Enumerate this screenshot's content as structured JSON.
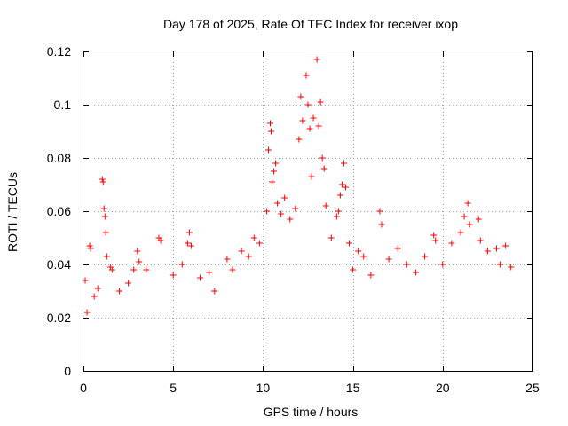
{
  "chart_data": {
    "type": "scatter",
    "title": "Day 178 of 2025, Rate Of TEC Index for receiver ixop",
    "xlabel": "GPS time / hours",
    "ylabel": "ROTI / TECUs",
    "xlim": [
      0,
      25
    ],
    "ylim": [
      0,
      0.12
    ],
    "xticks": [
      0,
      5,
      10,
      15,
      20,
      25
    ],
    "xtick_labels": [
      "0",
      "5",
      "10",
      "15",
      "20",
      "25"
    ],
    "yticks": [
      0,
      0.02,
      0.04,
      0.06,
      0.08,
      0.1,
      0.12
    ],
    "ytick_labels": [
      "0",
      "0.02",
      "0.04",
      "0.06",
      "0.08",
      "0.1",
      "0.12"
    ],
    "grid": true,
    "marker": "+",
    "color": "#ff0000",
    "series": [
      {
        "name": "ROTI",
        "points": [
          [
            0.1,
            0.034
          ],
          [
            0.2,
            0.022
          ],
          [
            0.35,
            0.047
          ],
          [
            0.4,
            0.046
          ],
          [
            0.6,
            0.028
          ],
          [
            0.8,
            0.031
          ],
          [
            1.05,
            0.072
          ],
          [
            1.1,
            0.071
          ],
          [
            1.15,
            0.061
          ],
          [
            1.2,
            0.058
          ],
          [
            1.25,
            0.052
          ],
          [
            1.3,
            0.043
          ],
          [
            1.5,
            0.039
          ],
          [
            1.6,
            0.038
          ],
          [
            2.0,
            0.03
          ],
          [
            2.5,
            0.033
          ],
          [
            2.8,
            0.038
          ],
          [
            3.0,
            0.045
          ],
          [
            3.1,
            0.041
          ],
          [
            3.5,
            0.038
          ],
          [
            4.2,
            0.05
          ],
          [
            4.3,
            0.049
          ],
          [
            5.0,
            0.036
          ],
          [
            5.5,
            0.04
          ],
          [
            5.8,
            0.048
          ],
          [
            5.9,
            0.052
          ],
          [
            6.0,
            0.047
          ],
          [
            6.5,
            0.035
          ],
          [
            7.0,
            0.037
          ],
          [
            7.3,
            0.03
          ],
          [
            8.0,
            0.042
          ],
          [
            8.3,
            0.038
          ],
          [
            8.8,
            0.045
          ],
          [
            9.2,
            0.043
          ],
          [
            9.5,
            0.05
          ],
          [
            9.8,
            0.048
          ],
          [
            10.2,
            0.06
          ],
          [
            10.3,
            0.083
          ],
          [
            10.4,
            0.093
          ],
          [
            10.45,
            0.09
          ],
          [
            10.5,
            0.071
          ],
          [
            10.6,
            0.075
          ],
          [
            10.7,
            0.078
          ],
          [
            10.8,
            0.063
          ],
          [
            11.0,
            0.059
          ],
          [
            11.2,
            0.065
          ],
          [
            11.5,
            0.057
          ],
          [
            11.8,
            0.061
          ],
          [
            12.0,
            0.087
          ],
          [
            12.1,
            0.103
          ],
          [
            12.2,
            0.094
          ],
          [
            12.4,
            0.111
          ],
          [
            12.5,
            0.1
          ],
          [
            12.6,
            0.091
          ],
          [
            12.7,
            0.073
          ],
          [
            12.8,
            0.095
          ],
          [
            13.0,
            0.117
          ],
          [
            13.1,
            0.092
          ],
          [
            13.2,
            0.101
          ],
          [
            13.3,
            0.08
          ],
          [
            13.4,
            0.076
          ],
          [
            13.5,
            0.062
          ],
          [
            13.8,
            0.05
          ],
          [
            14.1,
            0.058
          ],
          [
            14.2,
            0.06
          ],
          [
            14.3,
            0.066
          ],
          [
            14.4,
            0.07
          ],
          [
            14.5,
            0.078
          ],
          [
            14.6,
            0.069
          ],
          [
            14.8,
            0.048
          ],
          [
            15.0,
            0.038
          ],
          [
            15.3,
            0.045
          ],
          [
            15.6,
            0.043
          ],
          [
            16.0,
            0.036
          ],
          [
            16.5,
            0.06
          ],
          [
            16.6,
            0.055
          ],
          [
            17.0,
            0.042
          ],
          [
            17.5,
            0.046
          ],
          [
            18.0,
            0.04
          ],
          [
            18.5,
            0.037
          ],
          [
            19.0,
            0.043
          ],
          [
            19.5,
            0.051
          ],
          [
            19.6,
            0.049
          ],
          [
            20.0,
            0.04
          ],
          [
            20.5,
            0.048
          ],
          [
            21.0,
            0.052
          ],
          [
            21.2,
            0.058
          ],
          [
            21.4,
            0.063
          ],
          [
            21.5,
            0.055
          ],
          [
            22.0,
            0.057
          ],
          [
            22.1,
            0.049
          ],
          [
            22.5,
            0.045
          ],
          [
            23.0,
            0.046
          ],
          [
            23.2,
            0.04
          ],
          [
            23.5,
            0.047
          ],
          [
            23.8,
            0.039
          ]
        ]
      }
    ]
  }
}
